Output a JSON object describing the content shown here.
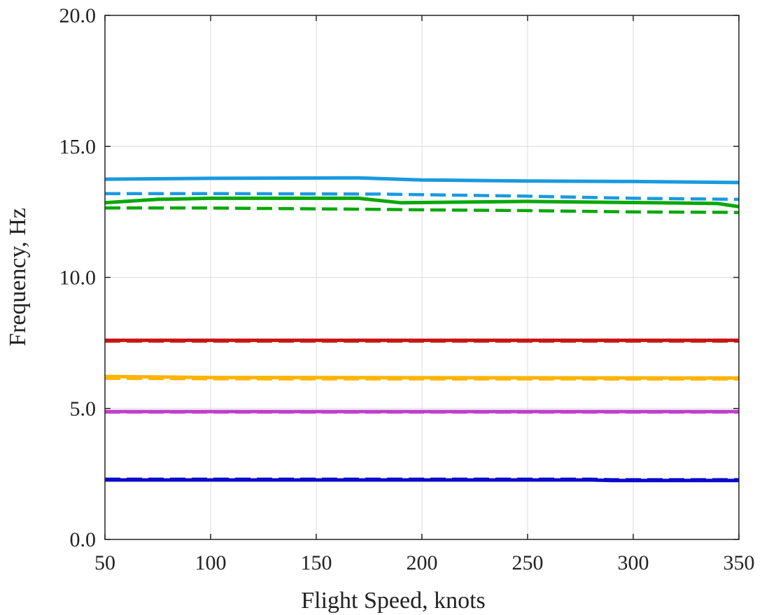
{
  "chart_data": {
    "type": "line",
    "title": "",
    "xlabel": "Flight Speed, knots",
    "ylabel": "Frequency, Hz",
    "xlim": [
      50,
      350
    ],
    "ylim": [
      0,
      20
    ],
    "xticks": [
      50,
      100,
      150,
      200,
      250,
      300,
      350
    ],
    "yticks": [
      0,
      5,
      10,
      15,
      20
    ],
    "xtick_labels": [
      "50",
      "100",
      "150",
      "200",
      "250",
      "300",
      "350"
    ],
    "ytick_labels": [
      "0.0",
      "5.0",
      "10.0",
      "15.0",
      "20.0"
    ],
    "grid": true,
    "legend": "none",
    "series": [
      {
        "color": "#0a0ac8",
        "dash": false,
        "x": [
          50,
          280,
          290,
          350
        ],
        "y": [
          2.27,
          2.27,
          2.25,
          2.25
        ]
      },
      {
        "color": "#0a0ac8",
        "dash": true,
        "x": [
          50,
          280,
          290,
          350
        ],
        "y": [
          2.3,
          2.3,
          2.28,
          2.28
        ]
      },
      {
        "color": "#c040c8",
        "dash": false,
        "x": [
          50,
          350
        ],
        "y": [
          4.88,
          4.88
        ]
      },
      {
        "color": "#c040c8",
        "dash": true,
        "x": [
          50,
          350
        ],
        "y": [
          4.86,
          4.86
        ]
      },
      {
        "color": "#ffb400",
        "dash": false,
        "x": [
          50,
          100,
          350
        ],
        "y": [
          6.22,
          6.18,
          6.16
        ]
      },
      {
        "color": "#ffb400",
        "dash": true,
        "x": [
          50,
          100,
          350
        ],
        "y": [
          6.15,
          6.13,
          6.12
        ]
      },
      {
        "color": "#c81414",
        "dash": false,
        "x": [
          50,
          350
        ],
        "y": [
          7.6,
          7.6
        ]
      },
      {
        "color": "#c81414",
        "dash": true,
        "x": [
          50,
          350
        ],
        "y": [
          7.57,
          7.57
        ]
      },
      {
        "color": "#0aa80a",
        "dash": false,
        "x": [
          50,
          75,
          100,
          170,
          190,
          250,
          310,
          340,
          350
        ],
        "y": [
          12.85,
          12.98,
          13.02,
          13.02,
          12.85,
          12.9,
          12.85,
          12.82,
          12.7
        ]
      },
      {
        "color": "#0aa80a",
        "dash": true,
        "x": [
          50,
          100,
          175,
          200,
          250,
          300,
          350
        ],
        "y": [
          12.65,
          12.65,
          12.6,
          12.58,
          12.55,
          12.5,
          12.48
        ]
      },
      {
        "color": "#1a9ae0",
        "dash": false,
        "x": [
          50,
          100,
          170,
          200,
          250,
          300,
          350
        ],
        "y": [
          13.75,
          13.78,
          13.8,
          13.72,
          13.68,
          13.66,
          13.62
        ]
      },
      {
        "color": "#1a9ae0",
        "dash": true,
        "x": [
          50,
          100,
          180,
          250,
          300,
          350
        ],
        "y": [
          13.2,
          13.2,
          13.18,
          13.1,
          13.02,
          12.98
        ]
      }
    ]
  }
}
